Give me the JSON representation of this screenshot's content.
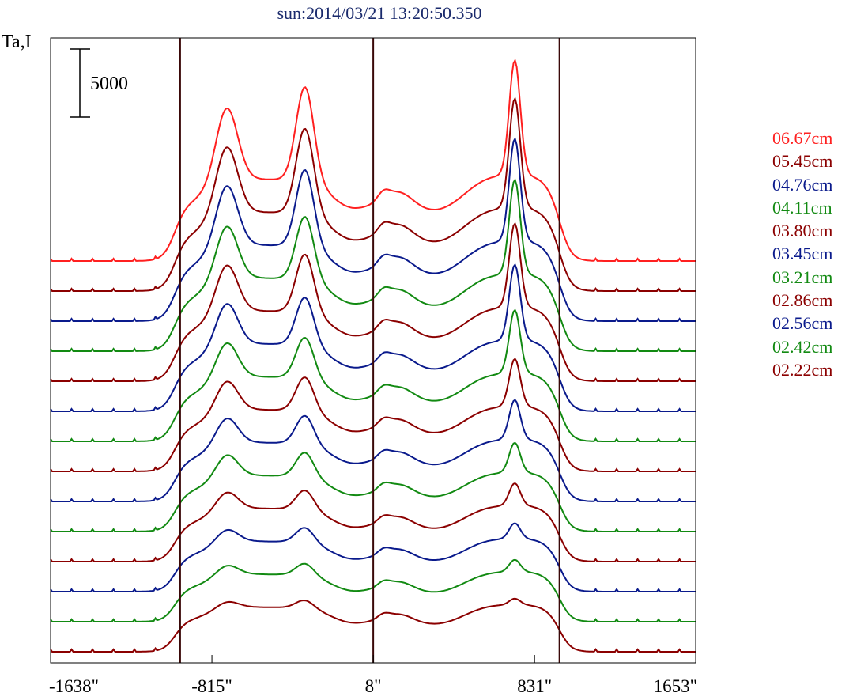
{
  "header": {
    "title": "sun:2014/03/21 13:20:50.350"
  },
  "chart_data": {
    "type": "line",
    "title": "sun:2014/03/21 13:20:50.350",
    "ylabel": "Ta,I",
    "xlim": [
      -1638,
      1653
    ],
    "x_ticks": [
      {
        "value": -1638,
        "label": "-1638\""
      },
      {
        "value": -815,
        "label": "-815\""
      },
      {
        "value": 8,
        "label": "8\""
      },
      {
        "value": 831,
        "label": "831\""
      },
      {
        "value": 1653,
        "label": "1653\""
      }
    ],
    "vertical_lines": [
      -977,
      8,
      958
    ],
    "scale_bar": {
      "label": "5000",
      "value": 5000
    },
    "colors": {
      "red": "#ff2020",
      "maroon": "#8b0000",
      "navy": "#0a1a8c",
      "green": "#128a12",
      "frame": "#000000",
      "vline": "#3a0808"
    },
    "series": [
      {
        "name": "06.67cm",
        "color": "#ff2020",
        "peaks": [
          1.0,
          1.0,
          1.0
        ]
      },
      {
        "name": "05.45cm",
        "color": "#8b0000",
        "peaks": [
          0.95,
          0.94,
          0.99
        ]
      },
      {
        "name": "04.76cm",
        "color": "#0a1a8c",
        "peaks": [
          0.9,
          0.88,
          0.96
        ]
      },
      {
        "name": "04.11cm",
        "color": "#128a12",
        "peaks": [
          0.82,
          0.75,
          0.92
        ]
      },
      {
        "name": "03.80cm",
        "color": "#8b0000",
        "peaks": [
          0.76,
          0.72,
          0.85
        ]
      },
      {
        "name": "03.45cm",
        "color": "#0a1a8c",
        "peaks": [
          0.7,
          0.62,
          0.8
        ]
      },
      {
        "name": "03.21cm",
        "color": "#128a12",
        "peaks": [
          0.62,
          0.55,
          0.7
        ]
      },
      {
        "name": "02.86cm",
        "color": "#8b0000",
        "peaks": [
          0.55,
          0.48,
          0.55
        ]
      },
      {
        "name": "02.56cm",
        "color": "#0a1a8c",
        "peaks": [
          0.5,
          0.42,
          0.48
        ]
      },
      {
        "name": "02.42cm",
        "color": "#128a12",
        "peaks": [
          0.45,
          0.38,
          0.38
        ]
      },
      {
        "name": "02.22cm",
        "color": "#8b0000",
        "peaks": [
          0.38,
          0.32,
          0.3
        ]
      },
      {
        "name": "",
        "color": "#0a1a8c",
        "peaks": [
          0.3,
          0.26,
          0.22
        ]
      },
      {
        "name": "",
        "color": "#128a12",
        "peaks": [
          0.25,
          0.22,
          0.18
        ]
      },
      {
        "name": "",
        "color": "#8b0000",
        "peaks": [
          0.18,
          0.16,
          0.1
        ]
      }
    ]
  }
}
